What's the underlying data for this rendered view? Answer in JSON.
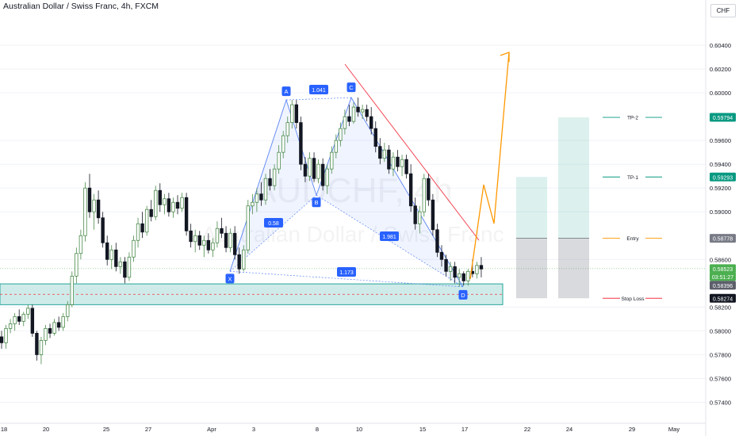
{
  "header": {
    "title": "Australian Dollar / Swiss Franc, 4h, FXCM",
    "currency": "CHF"
  },
  "watermark": {
    "symbol": "AUDCHF, 4h",
    "name": "Australian Dollar / Swiss Franc"
  },
  "chart_data": {
    "type": "candlestick",
    "ylim": [
      0.5725,
      0.607
    ],
    "y_ticks": [
      "0.60400",
      "0.60200",
      "0.60000",
      "0.59600",
      "0.59400",
      "0.59200",
      "0.59000",
      "0.58600",
      "0.58200",
      "0.58000",
      "0.57800",
      "0.57600",
      "0.57400"
    ],
    "x_ticks": [
      "18",
      "20",
      "25",
      "27",
      "Apr",
      "3",
      "8",
      "10",
      "15",
      "17",
      "22",
      "24",
      "29",
      "May"
    ],
    "price_labels": [
      {
        "value": "0.59794",
        "color": "#089981"
      },
      {
        "value": "0.59293",
        "color": "#089981"
      },
      {
        "value": "0.58778",
        "color": "#787b86"
      },
      {
        "value": "0.58523",
        "color": "#4caf50"
      },
      {
        "value": "03:51:27",
        "color": "#4caf50"
      },
      {
        "value": "0.58396",
        "color": "#5d606b"
      },
      {
        "value": "0.58274",
        "color": "#131722"
      }
    ],
    "levels": [
      {
        "name": "TP-2",
        "price": 0.59794,
        "color": "#089981"
      },
      {
        "name": "TP-1",
        "price": 0.59293,
        "color": "#089981"
      },
      {
        "name": "Entry",
        "price": 0.58778,
        "color": "#ff9800"
      },
      {
        "name": "Stop Loss",
        "price": 0.58274,
        "color": "#f23645"
      }
    ],
    "harmonic_points": [
      {
        "label": "X",
        "price": 0.585
      },
      {
        "label": "A",
        "price": 0.5994
      },
      {
        "label": "B",
        "price": 0.5914
      },
      {
        "label": "C",
        "price": 0.5996
      },
      {
        "label": "D",
        "price": 0.5837
      }
    ],
    "harmonic_ratios": [
      "1.041",
      "0.58",
      "1.981",
      "1.173"
    ],
    "support_zone": {
      "top": 0.58395,
      "bottom": 0.5822,
      "color": "#26a69a"
    },
    "current_price": 0.58523,
    "candles": [
      [
        0.5795,
        0.58,
        0.5785,
        0.579
      ],
      [
        0.579,
        0.5805,
        0.5785,
        0.5802
      ],
      [
        0.5802,
        0.581,
        0.5798,
        0.5806
      ],
      [
        0.5806,
        0.5815,
        0.58,
        0.5812
      ],
      [
        0.5812,
        0.5818,
        0.5805,
        0.5808
      ],
      [
        0.5808,
        0.5816,
        0.5804,
        0.5814
      ],
      [
        0.5814,
        0.5822,
        0.581,
        0.5819
      ],
      [
        0.5819,
        0.5822,
        0.5795,
        0.5798
      ],
      [
        0.5798,
        0.58,
        0.5775,
        0.578
      ],
      [
        0.578,
        0.5795,
        0.5772,
        0.5792
      ],
      [
        0.5792,
        0.5805,
        0.5788,
        0.5802
      ],
      [
        0.5802,
        0.5806,
        0.5794,
        0.5798
      ],
      [
        0.5798,
        0.581,
        0.5796,
        0.5807
      ],
      [
        0.5807,
        0.5812,
        0.58,
        0.5803
      ],
      [
        0.5803,
        0.5815,
        0.58,
        0.5812
      ],
      [
        0.5812,
        0.5825,
        0.5808,
        0.5822
      ],
      [
        0.5822,
        0.585,
        0.582,
        0.5846
      ],
      [
        0.5846,
        0.587,
        0.584,
        0.5865
      ],
      [
        0.5865,
        0.5885,
        0.586,
        0.588
      ],
      [
        0.588,
        0.5925,
        0.5875,
        0.592
      ],
      [
        0.592,
        0.5932,
        0.5895,
        0.59
      ],
      [
        0.59,
        0.5915,
        0.5885,
        0.591
      ],
      [
        0.591,
        0.5918,
        0.589,
        0.5895
      ],
      [
        0.5895,
        0.59,
        0.587,
        0.5874
      ],
      [
        0.5874,
        0.588,
        0.5855,
        0.586
      ],
      [
        0.586,
        0.5872,
        0.5852,
        0.5868
      ],
      [
        0.5868,
        0.5874,
        0.585,
        0.5854
      ],
      [
        0.5854,
        0.5862,
        0.5848,
        0.5858
      ],
      [
        0.5858,
        0.5862,
        0.584,
        0.5845
      ],
      [
        0.5845,
        0.5866,
        0.5842,
        0.5862
      ],
      [
        0.5862,
        0.588,
        0.5858,
        0.5876
      ],
      [
        0.5876,
        0.5895,
        0.587,
        0.589
      ],
      [
        0.589,
        0.59,
        0.5878,
        0.5883
      ],
      [
        0.5883,
        0.5905,
        0.588,
        0.5902
      ],
      [
        0.5902,
        0.591,
        0.5892,
        0.5896
      ],
      [
        0.5896,
        0.5922,
        0.5893,
        0.5918
      ],
      [
        0.5918,
        0.5924,
        0.59,
        0.5906
      ],
      [
        0.5906,
        0.5915,
        0.5898,
        0.5911
      ],
      [
        0.5911,
        0.5916,
        0.5896,
        0.59
      ],
      [
        0.59,
        0.5912,
        0.5895,
        0.5908
      ],
      [
        0.5908,
        0.5914,
        0.5898,
        0.5903
      ],
      [
        0.5903,
        0.5916,
        0.59,
        0.5912
      ],
      [
        0.5912,
        0.5916,
        0.588,
        0.5884
      ],
      [
        0.5884,
        0.589,
        0.587,
        0.5875
      ],
      [
        0.5875,
        0.5885,
        0.5866,
        0.588
      ],
      [
        0.588,
        0.5884,
        0.5868,
        0.5872
      ],
      [
        0.5872,
        0.588,
        0.5862,
        0.5876
      ],
      [
        0.5876,
        0.5882,
        0.5865,
        0.5868
      ],
      [
        0.5868,
        0.5878,
        0.5862,
        0.5874
      ],
      [
        0.5874,
        0.5892,
        0.587,
        0.5886
      ],
      [
        0.5886,
        0.5895,
        0.5878,
        0.5882
      ],
      [
        0.5882,
        0.5888,
        0.5866,
        0.587
      ],
      [
        0.587,
        0.5886,
        0.5866,
        0.5882
      ],
      [
        0.5882,
        0.5888,
        0.586,
        0.5864
      ],
      [
        0.5864,
        0.587,
        0.5848,
        0.5852
      ],
      [
        0.5852,
        0.5872,
        0.585,
        0.5868
      ],
      [
        0.5868,
        0.591,
        0.5865,
        0.5905
      ],
      [
        0.5905,
        0.5915,
        0.5898,
        0.5908
      ],
      [
        0.5908,
        0.592,
        0.59,
        0.5915
      ],
      [
        0.5915,
        0.5925,
        0.5905,
        0.591
      ],
      [
        0.591,
        0.5932,
        0.5906,
        0.5928
      ],
      [
        0.5928,
        0.5936,
        0.5918,
        0.5922
      ],
      [
        0.5922,
        0.594,
        0.5918,
        0.5936
      ],
      [
        0.5936,
        0.5956,
        0.5932,
        0.595
      ],
      [
        0.595,
        0.5968,
        0.5945,
        0.5964
      ],
      [
        0.5964,
        0.598,
        0.5958,
        0.5975
      ],
      [
        0.5975,
        0.5994,
        0.597,
        0.599
      ],
      [
        0.599,
        0.5994,
        0.597,
        0.5975
      ],
      [
        0.5975,
        0.598,
        0.5935,
        0.594
      ],
      [
        0.594,
        0.5946,
        0.5925,
        0.593
      ],
      [
        0.593,
        0.595,
        0.5926,
        0.5945
      ],
      [
        0.5945,
        0.595,
        0.5925,
        0.5928
      ],
      [
        0.5928,
        0.5944,
        0.5924,
        0.594
      ],
      [
        0.594,
        0.5945,
        0.5918,
        0.5922
      ],
      [
        0.5922,
        0.594,
        0.5915,
        0.5936
      ],
      [
        0.5936,
        0.5955,
        0.5932,
        0.595
      ],
      [
        0.595,
        0.5965,
        0.5945,
        0.596
      ],
      [
        0.596,
        0.5975,
        0.5955,
        0.597
      ],
      [
        0.597,
        0.5986,
        0.5965,
        0.598
      ],
      [
        0.598,
        0.599,
        0.5972,
        0.5976
      ],
      [
        0.5976,
        0.5992,
        0.5974,
        0.5988
      ],
      [
        0.5988,
        0.5996,
        0.598,
        0.5984
      ],
      [
        0.5984,
        0.599,
        0.5978,
        0.5986
      ],
      [
        0.5986,
        0.599,
        0.5976,
        0.598
      ],
      [
        0.598,
        0.5988,
        0.5965,
        0.597
      ],
      [
        0.597,
        0.5976,
        0.595,
        0.5955
      ],
      [
        0.5955,
        0.5962,
        0.594,
        0.5945
      ],
      [
        0.5945,
        0.5958,
        0.5942,
        0.5952
      ],
      [
        0.5952,
        0.5956,
        0.5932,
        0.5936
      ],
      [
        0.5936,
        0.595,
        0.593,
        0.5946
      ],
      [
        0.5946,
        0.5952,
        0.5934,
        0.5938
      ],
      [
        0.5938,
        0.5948,
        0.593,
        0.5944
      ],
      [
        0.5944,
        0.5948,
        0.5928,
        0.5932
      ],
      [
        0.5932,
        0.594,
        0.59,
        0.5905
      ],
      [
        0.5905,
        0.5912,
        0.5885,
        0.589
      ],
      [
        0.589,
        0.5905,
        0.5882,
        0.59
      ],
      [
        0.59,
        0.5932,
        0.5896,
        0.5928
      ],
      [
        0.5928,
        0.5932,
        0.5905,
        0.591
      ],
      [
        0.591,
        0.5915,
        0.588,
        0.5885
      ],
      [
        0.5885,
        0.589,
        0.5862,
        0.5866
      ],
      [
        0.5866,
        0.5872,
        0.5854,
        0.586
      ],
      [
        0.586,
        0.5864,
        0.5846,
        0.585
      ],
      [
        0.585,
        0.5858,
        0.5842,
        0.5854
      ],
      [
        0.5854,
        0.5858,
        0.584,
        0.5845
      ],
      [
        0.5845,
        0.5852,
        0.5837,
        0.5848
      ],
      [
        0.5848,
        0.585,
        0.5838,
        0.5842
      ],
      [
        0.5842,
        0.5852,
        0.5838,
        0.585
      ],
      [
        0.585,
        0.586,
        0.5845,
        0.5848
      ],
      [
        0.5848,
        0.5858,
        0.5844,
        0.5855
      ],
      [
        0.5855,
        0.5862,
        0.5845,
        0.5852
      ]
    ]
  }
}
